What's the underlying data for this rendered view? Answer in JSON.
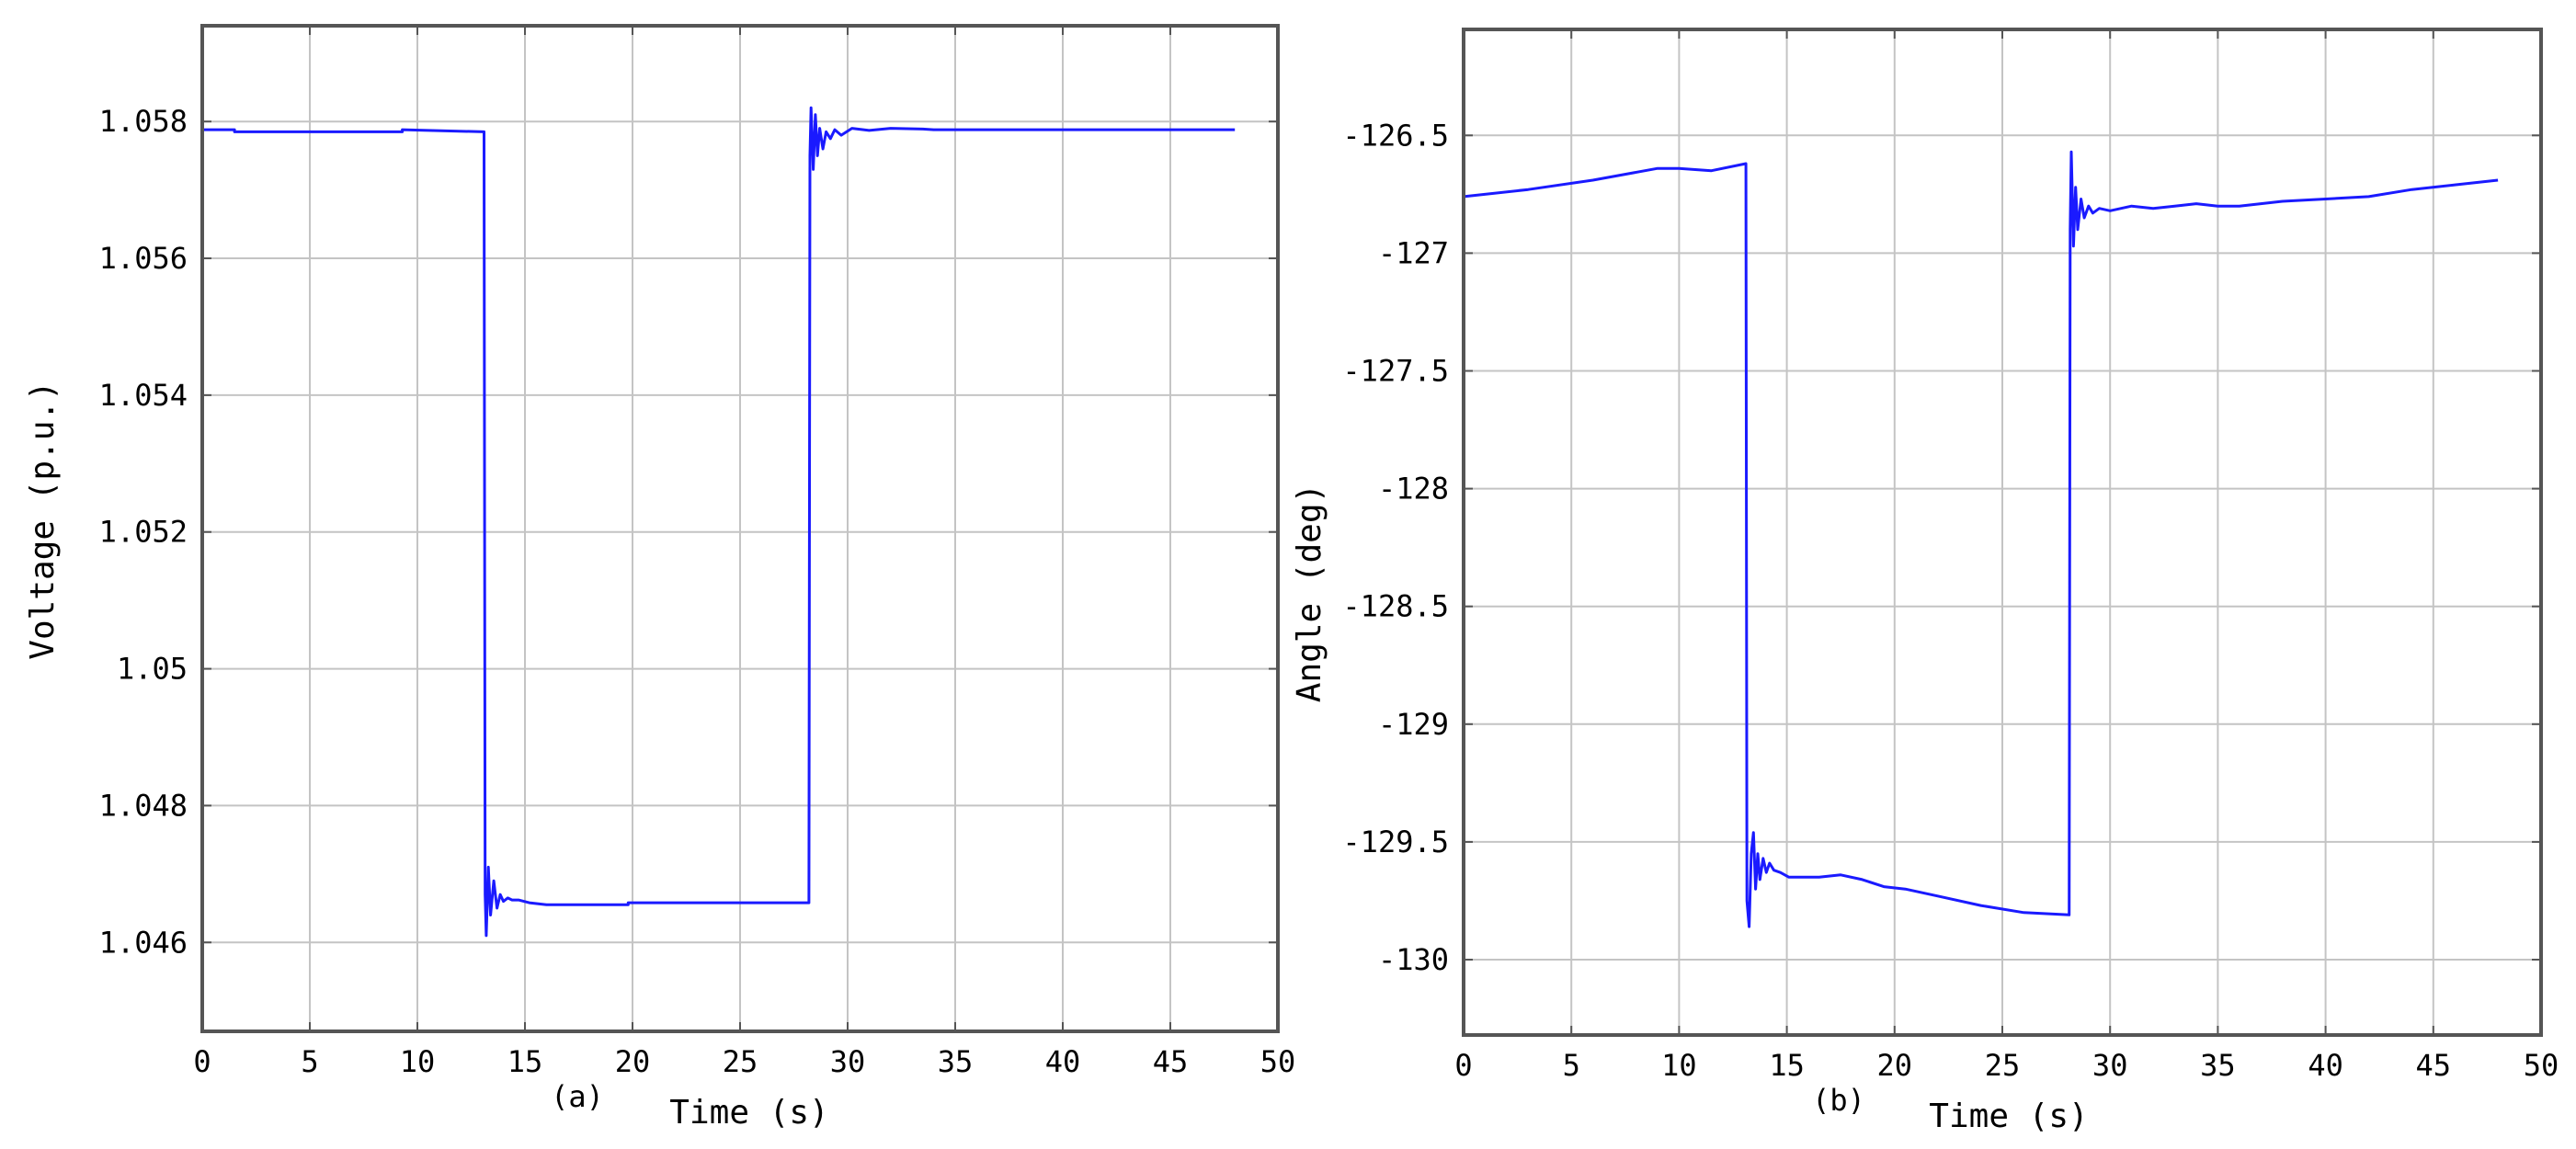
{
  "chart_data": [
    {
      "type": "line",
      "caption": "(a)",
      "xlabel": "Time (s)",
      "ylabel": "Voltage (p.u.)",
      "xlim": [
        0,
        50
      ],
      "ylim": [
        1.0447,
        1.0594
      ],
      "xticks": [
        0,
        5,
        10,
        15,
        20,
        25,
        30,
        35,
        40,
        45,
        50
      ],
      "xtick_labels": [
        "0",
        "5",
        "10",
        "15",
        "20",
        "25",
        "30",
        "35",
        "40",
        "45",
        "50"
      ],
      "yticks": [
        1.046,
        1.048,
        1.05,
        1.052,
        1.054,
        1.056,
        1.058
      ],
      "ytick_labels": [
        "1.046",
        "1.048",
        "1.05",
        "1.052",
        "1.054",
        "1.056",
        "1.058"
      ],
      "grid": true,
      "line_color": "#1a1aff",
      "series": [
        {
          "x": [
            0,
            1.5,
            1.5,
            9.3,
            9.3,
            13.1,
            13.15,
            13.2,
            13.3,
            13.4,
            13.55,
            13.7,
            13.85,
            14.0,
            14.2,
            14.4,
            14.7,
            15.2,
            16,
            19.8,
            19.8,
            28.2,
            28.25,
            28.3,
            28.4,
            28.5,
            28.6,
            28.7,
            28.85,
            29.0,
            29.2,
            29.4,
            29.7,
            30.2,
            31,
            32,
            33.5,
            34,
            40,
            48
          ],
          "y": [
            1.05788,
            1.05788,
            1.05785,
            1.05785,
            1.05788,
            1.05785,
            1.0467,
            1.0461,
            1.0471,
            1.0464,
            1.0469,
            1.0465,
            1.0467,
            1.0466,
            1.04665,
            1.04662,
            1.04662,
            1.04658,
            1.04655,
            1.04655,
            1.04658,
            1.04658,
            1.0575,
            1.0582,
            1.0573,
            1.0581,
            1.0575,
            1.0579,
            1.0576,
            1.05785,
            1.05775,
            1.05788,
            1.0578,
            1.0579,
            1.05787,
            1.0579,
            1.05789,
            1.05788,
            1.05788,
            1.05788
          ]
        }
      ]
    },
    {
      "type": "line",
      "caption": "(b)",
      "xlabel": "Time (s)",
      "ylabel": "Angle (deg)",
      "xlim": [
        0,
        50
      ],
      "ylim": [
        -130.32,
        -126.05
      ],
      "xticks": [
        0,
        5,
        10,
        15,
        20,
        25,
        30,
        35,
        40,
        45,
        50
      ],
      "xtick_labels": [
        "0",
        "5",
        "10",
        "15",
        "20",
        "25",
        "30",
        "35",
        "40",
        "45",
        "50"
      ],
      "yticks": [
        -130,
        -129.5,
        -129,
        -128.5,
        -128,
        -127.5,
        -127,
        -126.5
      ],
      "ytick_labels": [
        "-130",
        "-129.5",
        "-129",
        "-128.5",
        "-128",
        "-127.5",
        "-127",
        "-126.5"
      ],
      "grid": true,
      "line_color": "#1a1aff",
      "series": [
        {
          "x": [
            0,
            3,
            6,
            9,
            10,
            11.5,
            13.1,
            13.15,
            13.25,
            13.35,
            13.45,
            13.55,
            13.65,
            13.75,
            13.9,
            14.05,
            14.2,
            14.4,
            14.7,
            15.1,
            15.5,
            16.5,
            17.5,
            18.5,
            19.5,
            20.5,
            22,
            24,
            26,
            28.1,
            28.15,
            28.2,
            28.3,
            28.4,
            28.5,
            28.65,
            28.8,
            29.0,
            29.2,
            29.5,
            30,
            31,
            32,
            33,
            34,
            35,
            36,
            38,
            40,
            42,
            44,
            46,
            48
          ],
          "y": [
            -126.76,
            -126.73,
            -126.69,
            -126.64,
            -126.64,
            -126.65,
            -126.62,
            -129.75,
            -129.86,
            -129.55,
            -129.46,
            -129.7,
            -129.55,
            -129.66,
            -129.57,
            -129.63,
            -129.59,
            -129.62,
            -129.63,
            -129.65,
            -129.65,
            -129.65,
            -129.64,
            -129.66,
            -129.69,
            -129.7,
            -129.73,
            -129.77,
            -129.8,
            -129.81,
            -126.9,
            -126.57,
            -126.97,
            -126.72,
            -126.9,
            -126.77,
            -126.85,
            -126.8,
            -126.83,
            -126.81,
            -126.82,
            -126.8,
            -126.81,
            -126.8,
            -126.79,
            -126.8,
            -126.8,
            -126.78,
            -126.77,
            -126.76,
            -126.73,
            -126.71,
            -126.69
          ]
        }
      ]
    }
  ]
}
